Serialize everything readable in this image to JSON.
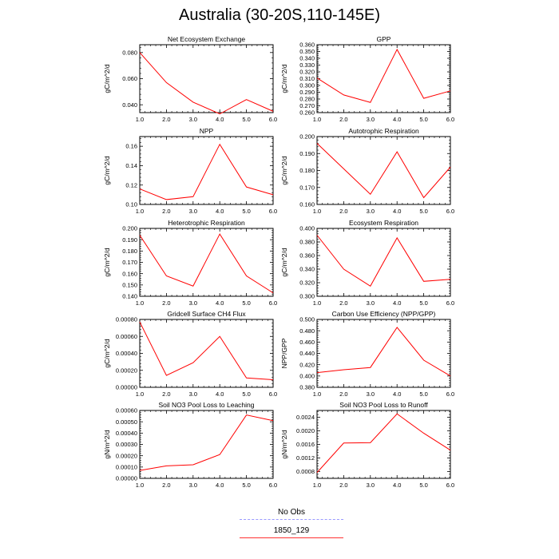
{
  "page": {
    "title": "Australia (30-20S,110-145E)"
  },
  "legend": {
    "items": [
      {
        "label": "No Obs",
        "color": "#9999ff",
        "style": "dashed"
      },
      {
        "label": "1850_129",
        "color": "#ff0000",
        "style": "solid"
      }
    ]
  },
  "chart_data": [
    {
      "type": "line",
      "title": "Net Ecosystem Exchange",
      "xlabel": "",
      "ylabel": "gC/m^2/d",
      "x": [
        1,
        2,
        3,
        4,
        5,
        6
      ],
      "xticks": [
        "1.0",
        "2.0",
        "3.0",
        "4.0",
        "5.0",
        "6.0"
      ],
      "xlim": [
        1,
        6
      ],
      "ylim": [
        0.034,
        0.086
      ],
      "yticks": [
        {
          "v": 0.04,
          "label": "0.040"
        },
        {
          "v": 0.06,
          "label": "0.060"
        },
        {
          "v": 0.08,
          "label": "0.080"
        }
      ],
      "series": [
        {
          "values": [
            0.08,
            0.057,
            0.042,
            0.033,
            0.044,
            0.035
          ],
          "color": "#ff0000"
        }
      ]
    },
    {
      "type": "line",
      "title": "GPP",
      "xlabel": "",
      "ylabel": "gC/m^2/d",
      "x": [
        1,
        2,
        3,
        4,
        5,
        6
      ],
      "xticks": [
        "1.0",
        "2.0",
        "3.0",
        "4.0",
        "5.0",
        "6.0"
      ],
      "xlim": [
        1,
        6
      ],
      "ylim": [
        0.26,
        0.36
      ],
      "yticks": [
        {
          "v": 0.26,
          "label": "0.260"
        },
        {
          "v": 0.27,
          "label": "0.270"
        },
        {
          "v": 0.28,
          "label": "0.280"
        },
        {
          "v": 0.29,
          "label": "0.290"
        },
        {
          "v": 0.3,
          "label": "0.300"
        },
        {
          "v": 0.31,
          "label": "0.310"
        },
        {
          "v": 0.32,
          "label": "0.320"
        },
        {
          "v": 0.33,
          "label": "0.330"
        },
        {
          "v": 0.34,
          "label": "0.340"
        },
        {
          "v": 0.35,
          "label": "0.350"
        },
        {
          "v": 0.36,
          "label": "0.360"
        }
      ],
      "series": [
        {
          "values": [
            0.311,
            0.286,
            0.275,
            0.353,
            0.281,
            0.292
          ],
          "color": "#ff0000"
        }
      ]
    },
    {
      "type": "line",
      "title": "NPP",
      "xlabel": "",
      "ylabel": "gC/m^2/d",
      "x": [
        1,
        2,
        3,
        4,
        5,
        6
      ],
      "xticks": [
        "1.0",
        "2.0",
        "3.0",
        "4.0",
        "5.0",
        "6.0"
      ],
      "xlim": [
        1,
        6
      ],
      "ylim": [
        0.1,
        0.17
      ],
      "yticks": [
        {
          "v": 0.1,
          "label": "0.10"
        },
        {
          "v": 0.12,
          "label": "0.12"
        },
        {
          "v": 0.14,
          "label": "0.14"
        },
        {
          "v": 0.16,
          "label": "0.16"
        }
      ],
      "series": [
        {
          "values": [
            0.116,
            0.105,
            0.108,
            0.162,
            0.118,
            0.11
          ],
          "color": "#ff0000"
        }
      ]
    },
    {
      "type": "line",
      "title": "Autotrophic Respiration",
      "xlabel": "",
      "ylabel": "gC/m^2/d",
      "x": [
        1,
        2,
        3,
        4,
        5,
        6
      ],
      "xticks": [
        "1.0",
        "2.0",
        "3.0",
        "4.0",
        "5.0",
        "6.0"
      ],
      "xlim": [
        1,
        6
      ],
      "ylim": [
        0.16,
        0.2
      ],
      "yticks": [
        {
          "v": 0.16,
          "label": "0.160"
        },
        {
          "v": 0.17,
          "label": "0.170"
        },
        {
          "v": 0.18,
          "label": "0.180"
        },
        {
          "v": 0.19,
          "label": "0.190"
        },
        {
          "v": 0.2,
          "label": "0.200"
        }
      ],
      "series": [
        {
          "values": [
            0.196,
            0.181,
            0.166,
            0.191,
            0.164,
            0.182
          ],
          "color": "#ff0000"
        }
      ]
    },
    {
      "type": "line",
      "title": "Heterotrophic Respiration",
      "xlabel": "",
      "ylabel": "gC/m^2/d",
      "x": [
        1,
        2,
        3,
        4,
        5,
        6
      ],
      "xticks": [
        "1.0",
        "2.0",
        "3.0",
        "4.0",
        "5.0",
        "6.0"
      ],
      "xlim": [
        1,
        6
      ],
      "ylim": [
        0.14,
        0.2
      ],
      "yticks": [
        {
          "v": 0.14,
          "label": "0.140"
        },
        {
          "v": 0.15,
          "label": "0.150"
        },
        {
          "v": 0.16,
          "label": "0.160"
        },
        {
          "v": 0.17,
          "label": "0.170"
        },
        {
          "v": 0.18,
          "label": "0.180"
        },
        {
          "v": 0.19,
          "label": "0.190"
        },
        {
          "v": 0.2,
          "label": "0.200"
        }
      ],
      "series": [
        {
          "values": [
            0.194,
            0.158,
            0.149,
            0.195,
            0.158,
            0.143
          ],
          "color": "#ff0000"
        }
      ]
    },
    {
      "type": "line",
      "title": "Ecosystem Respiration",
      "xlabel": "",
      "ylabel": "gC/m^2/d",
      "x": [
        1,
        2,
        3,
        4,
        5,
        6
      ],
      "xticks": [
        "1.0",
        "2.0",
        "3.0",
        "4.0",
        "5.0",
        "6.0"
      ],
      "xlim": [
        1,
        6
      ],
      "ylim": [
        0.3,
        0.4
      ],
      "yticks": [
        {
          "v": 0.3,
          "label": "0.300"
        },
        {
          "v": 0.32,
          "label": "0.320"
        },
        {
          "v": 0.34,
          "label": "0.340"
        },
        {
          "v": 0.36,
          "label": "0.360"
        },
        {
          "v": 0.38,
          "label": "0.380"
        },
        {
          "v": 0.4,
          "label": "0.400"
        }
      ],
      "series": [
        {
          "values": [
            0.39,
            0.34,
            0.315,
            0.386,
            0.322,
            0.325
          ],
          "color": "#ff0000"
        }
      ]
    },
    {
      "type": "line",
      "title": "Gridcell Surface CH4 Flux",
      "xlabel": "",
      "ylabel": "gC/m^2/d",
      "x": [
        1,
        2,
        3,
        4,
        5,
        6
      ],
      "xticks": [
        "1.0",
        "2.0",
        "3.0",
        "4.0",
        "5.0",
        "6.0"
      ],
      "xlim": [
        1,
        6
      ],
      "ylim": [
        0.0,
        0.0008
      ],
      "yticks": [
        {
          "v": 0.0,
          "label": "0.00000"
        },
        {
          "v": 0.0002,
          "label": "0.00020"
        },
        {
          "v": 0.0004,
          "label": "0.00040"
        },
        {
          "v": 0.0006,
          "label": "0.00060"
        },
        {
          "v": 0.0008,
          "label": "0.00080"
        }
      ],
      "series": [
        {
          "values": [
            0.00077,
            0.00014,
            0.00029,
            0.0006,
            0.00011,
            9e-05
          ],
          "color": "#ff0000"
        }
      ]
    },
    {
      "type": "line",
      "title": "Carbon Use Efficiency (NPP/GPP)",
      "xlabel": "",
      "ylabel": "NPP/GPP",
      "x": [
        1,
        2,
        3,
        4,
        5,
        6
      ],
      "xticks": [
        "1.0",
        "2.0",
        "3.0",
        "4.0",
        "5.0",
        "6.0"
      ],
      "xlim": [
        1,
        6
      ],
      "ylim": [
        0.38,
        0.5
      ],
      "yticks": [
        {
          "v": 0.38,
          "label": "0.380"
        },
        {
          "v": 0.4,
          "label": "0.400"
        },
        {
          "v": 0.42,
          "label": "0.420"
        },
        {
          "v": 0.44,
          "label": "0.440"
        },
        {
          "v": 0.46,
          "label": "0.460"
        },
        {
          "v": 0.48,
          "label": "0.480"
        },
        {
          "v": 0.5,
          "label": "0.500"
        }
      ],
      "series": [
        {
          "values": [
            0.406,
            0.411,
            0.415,
            0.486,
            0.428,
            0.4
          ],
          "color": "#ff0000"
        }
      ]
    },
    {
      "type": "line",
      "title": "Soil NO3 Pool Loss to Leaching",
      "xlabel": "",
      "ylabel": "gN/m^2/d",
      "x": [
        1,
        2,
        3,
        4,
        5,
        6
      ],
      "xticks": [
        "1.0",
        "2.0",
        "3.0",
        "4.0",
        "5.0",
        "6.0"
      ],
      "xlim": [
        1,
        6
      ],
      "ylim": [
        0.0,
        0.0006
      ],
      "yticks": [
        {
          "v": 0.0,
          "label": "0.00000"
        },
        {
          "v": 0.0001,
          "label": "0.00010"
        },
        {
          "v": 0.0002,
          "label": "0.00020"
        },
        {
          "v": 0.0003,
          "label": "0.00030"
        },
        {
          "v": 0.0004,
          "label": "0.00040"
        },
        {
          "v": 0.0005,
          "label": "0.00050"
        },
        {
          "v": 0.0006,
          "label": "0.00060"
        }
      ],
      "series": [
        {
          "values": [
            7e-05,
            0.00011,
            0.00012,
            0.00021,
            0.00056,
            0.00051
          ],
          "color": "#ff0000"
        }
      ]
    },
    {
      "type": "line",
      "title": "Soil NO3 Pool Loss to Runoff",
      "xlabel": "",
      "ylabel": "gN/m^2/d",
      "x": [
        1,
        2,
        3,
        4,
        5,
        6
      ],
      "xticks": [
        "1.0",
        "2.0",
        "3.0",
        "4.0",
        "5.0",
        "6.0"
      ],
      "xlim": [
        1,
        6
      ],
      "ylim": [
        0.0006,
        0.0026
      ],
      "yticks": [
        {
          "v": 0.0008,
          "label": "0.0008"
        },
        {
          "v": 0.0012,
          "label": "0.0012"
        },
        {
          "v": 0.0016,
          "label": "0.0016"
        },
        {
          "v": 0.002,
          "label": "0.0020"
        },
        {
          "v": 0.0024,
          "label": "0.0024"
        }
      ],
      "series": [
        {
          "values": [
            0.00077,
            0.00164,
            0.00165,
            0.0025,
            0.00193,
            0.00143
          ],
          "color": "#ff0000"
        }
      ]
    }
  ]
}
